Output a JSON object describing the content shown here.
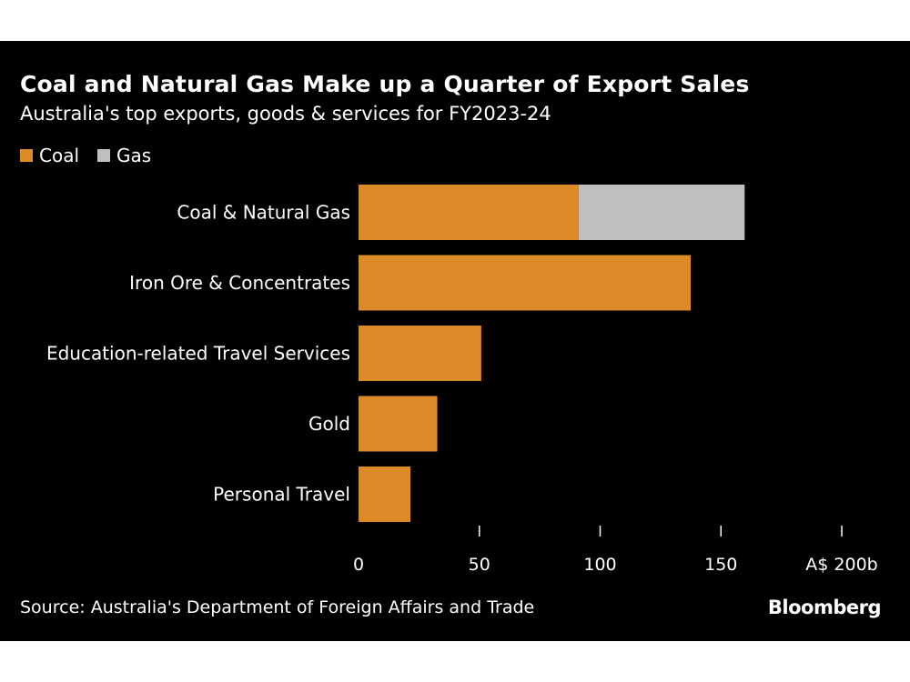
{
  "chart_data": {
    "type": "bar",
    "orientation": "horizontal",
    "stacked": true,
    "title": "Coal and Natural Gas Make up a Quarter of Export Sales",
    "subtitle": "Australia's top exports, goods & services for FY2023-24",
    "categories": [
      "Coal & Natural Gas",
      "Iron Ore & Concentrates",
      "Education-related Travel Services",
      "Gold",
      "Personal Travel"
    ],
    "series": [
      {
        "name": "Coal",
        "color": "#db8a27",
        "values": [
          91.1,
          137.5,
          50.8,
          32.6,
          21.5
        ]
      },
      {
        "name": "Gas",
        "color": "#bfbfbf",
        "values": [
          68.7,
          0,
          0,
          0,
          0
        ]
      }
    ],
    "xlim": [
      0,
      200
    ],
    "xticks": [
      0,
      50,
      100,
      150,
      200
    ],
    "xtick_labels": [
      "0",
      "50",
      "100",
      "150",
      "A$ 200b"
    ],
    "legend_position": "top-left",
    "grid": false,
    "source": "Source: Australia's Department of Foreign Affairs and Trade",
    "logo": "Bloomberg",
    "background": "#000000"
  }
}
